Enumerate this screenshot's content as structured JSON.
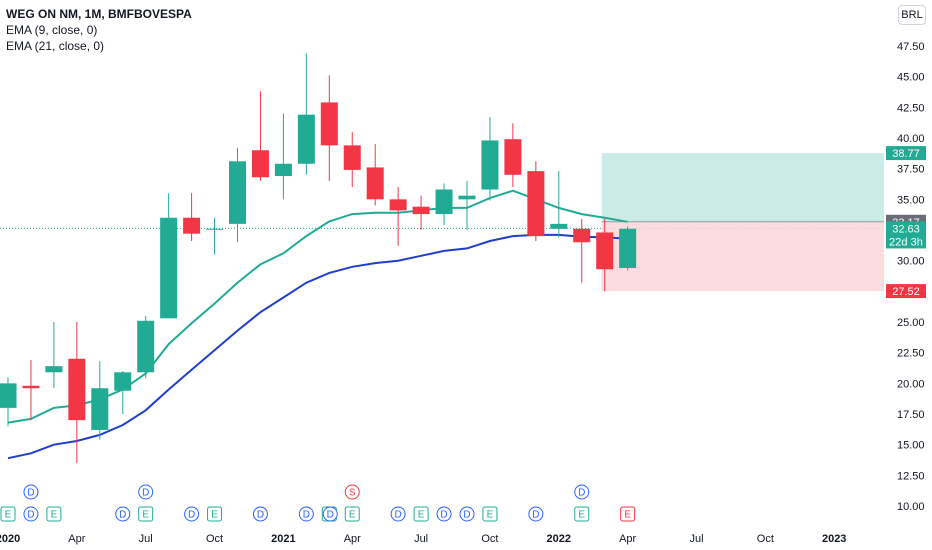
{
  "legend": {
    "title": "WEG ON NM, 1M, BMFBOVESPA",
    "ema1": "EMA (9, close, 0)",
    "ema2": "EMA (21, close, 0)"
  },
  "currency": "BRL",
  "chart_data": {
    "type": "candlestick",
    "interval": "1M",
    "ylim": [
      8.5,
      49
    ],
    "yticks": [
      10,
      12.5,
      15,
      17.5,
      20,
      22.5,
      25,
      27.5,
      30,
      32.5,
      35,
      37.5,
      40,
      42.5,
      45,
      47.5
    ],
    "ytick_labels": [
      "10.00",
      "12.50",
      "15.00",
      "17.50",
      "20.00",
      "22.50",
      "25.00",
      "27.50",
      "30.00",
      "32.50",
      "35.00",
      "37.50",
      "40.00",
      "42.50",
      "45.00",
      "47.50"
    ],
    "xticks": [
      {
        "label": "2020",
        "month": 0,
        "bold": true
      },
      {
        "label": "Apr",
        "month": 3,
        "bold": false
      },
      {
        "label": "Jul",
        "month": 6,
        "bold": false
      },
      {
        "label": "Oct",
        "month": 9,
        "bold": false
      },
      {
        "label": "2021",
        "month": 12,
        "bold": true
      },
      {
        "label": "Apr",
        "month": 15,
        "bold": false
      },
      {
        "label": "Jul",
        "month": 18,
        "bold": false
      },
      {
        "label": "Oct",
        "month": 21,
        "bold": false
      },
      {
        "label": "2022",
        "month": 24,
        "bold": true
      },
      {
        "label": "Apr",
        "month": 27,
        "bold": false
      },
      {
        "label": "Jul",
        "month": 30,
        "bold": false
      },
      {
        "label": "Oct",
        "month": 33,
        "bold": false
      },
      {
        "label": "2023",
        "month": 36,
        "bold": true
      }
    ],
    "candles": [
      {
        "date": "2019-12",
        "o": 18.0,
        "h": 20.5,
        "l": 16.5,
        "c": 20.0
      },
      {
        "date": "2020-01",
        "o": 19.8,
        "h": 21.9,
        "l": 17.0,
        "c": 19.6
      },
      {
        "date": "2020-02",
        "o": 20.9,
        "h": 25.0,
        "l": 19.6,
        "c": 21.4
      },
      {
        "date": "2020-03",
        "o": 22.0,
        "h": 25.0,
        "l": 13.5,
        "c": 17.0
      },
      {
        "date": "2020-04",
        "o": 16.2,
        "h": 21.8,
        "l": 15.4,
        "c": 19.6
      },
      {
        "date": "2020-05",
        "o": 19.4,
        "h": 21.0,
        "l": 17.5,
        "c": 20.9
      },
      {
        "date": "2020-06",
        "o": 20.9,
        "h": 25.5,
        "l": 20.4,
        "c": 25.1
      },
      {
        "date": "2020-07",
        "o": 25.3,
        "h": 35.5,
        "l": 25.3,
        "c": 33.5
      },
      {
        "date": "2020-08",
        "o": 33.5,
        "h": 35.5,
        "l": 31.6,
        "c": 32.2
      },
      {
        "date": "2020-09",
        "o": 32.6,
        "h": 33.5,
        "l": 30.5,
        "c": 32.6
      },
      {
        "date": "2020-10",
        "o": 33.0,
        "h": 39.2,
        "l": 31.5,
        "c": 38.1
      },
      {
        "date": "2020-11",
        "o": 39.0,
        "h": 43.8,
        "l": 36.5,
        "c": 36.8
      },
      {
        "date": "2020-12",
        "o": 36.9,
        "h": 42.0,
        "l": 35.0,
        "c": 37.9
      },
      {
        "date": "2021-01",
        "o": 37.9,
        "h": 46.9,
        "l": 37.0,
        "c": 41.9
      },
      {
        "date": "2021-02",
        "o": 42.9,
        "h": 45.1,
        "l": 36.5,
        "c": 39.4
      },
      {
        "date": "2021-03",
        "o": 39.4,
        "h": 40.5,
        "l": 36.0,
        "c": 37.4
      },
      {
        "date": "2021-04",
        "o": 37.6,
        "h": 39.5,
        "l": 34.5,
        "c": 35.0
      },
      {
        "date": "2021-05",
        "o": 35.0,
        "h": 36.0,
        "l": 31.2,
        "c": 34.1
      },
      {
        "date": "2021-06",
        "o": 34.4,
        "h": 35.3,
        "l": 32.5,
        "c": 33.8
      },
      {
        "date": "2021-07",
        "o": 33.8,
        "h": 36.3,
        "l": 32.9,
        "c": 35.8
      },
      {
        "date": "2021-08",
        "o": 35.0,
        "h": 36.5,
        "l": 32.5,
        "c": 35.3
      },
      {
        "date": "2021-09",
        "o": 35.8,
        "h": 41.7,
        "l": 34.9,
        "c": 39.8
      },
      {
        "date": "2021-10",
        "o": 39.9,
        "h": 41.2,
        "l": 36.0,
        "c": 37.0
      },
      {
        "date": "2021-11",
        "o": 37.3,
        "h": 38.1,
        "l": 31.6,
        "c": 32.0
      },
      {
        "date": "2021-12",
        "o": 32.6,
        "h": 37.3,
        "l": 31.9,
        "c": 33.0
      },
      {
        "date": "2022-01",
        "o": 32.6,
        "h": 33.4,
        "l": 28.2,
        "c": 31.5
      },
      {
        "date": "2022-02",
        "o": 32.3,
        "h": 33.4,
        "l": 27.5,
        "c": 29.3
      },
      {
        "date": "2022-03",
        "o": 29.4,
        "h": 32.8,
        "l": 29.2,
        "c": 32.6
      }
    ],
    "ema9": [
      16.8,
      17.1,
      18.0,
      18.2,
      18.7,
      19.5,
      20.8,
      23.2,
      24.9,
      26.5,
      28.2,
      29.7,
      30.6,
      32.0,
      33.2,
      33.8,
      33.9,
      33.9,
      34.1,
      34.3,
      34.3,
      35.1,
      35.7,
      35.0,
      34.3,
      33.8,
      33.5,
      33.17
    ],
    "ema21": [
      13.9,
      14.3,
      15.0,
      15.3,
      15.8,
      16.6,
      17.8,
      19.5,
      21.1,
      22.7,
      24.3,
      25.8,
      27.0,
      28.2,
      29.0,
      29.5,
      29.8,
      30.0,
      30.4,
      30.8,
      31.0,
      31.6,
      32.0,
      32.1,
      32.1,
      31.95,
      31.9,
      31.8
    ],
    "ema9_color": "#22ab94",
    "ema21_color": "#1e40c8",
    "up_color": "#22ab94",
    "down_color": "#f23645",
    "position": {
      "type": "long",
      "entry": 33.17,
      "target": 38.77,
      "stop": 27.52,
      "start_month": 26,
      "end_month": 38,
      "profit_color": "#b9e6dd",
      "loss_color": "#fbd3d7"
    },
    "price_labels": [
      {
        "text": "38.77",
        "value": 38.77,
        "color": "#22ab94"
      },
      {
        "text": "33.17",
        "value": 33.17,
        "color": "#6a6d78"
      },
      {
        "text": "27.52",
        "value": 27.52,
        "color": "#f23645"
      }
    ],
    "last_price": {
      "text": "32.63",
      "value": 32.63,
      "countdown": "22d 3h",
      "color": "#22ab94"
    },
    "event_markers": [
      {
        "type": "E",
        "month": 0,
        "row": 2
      },
      {
        "type": "D",
        "month": 1,
        "row": 2
      },
      {
        "type": "E",
        "month": 2,
        "row": 2
      },
      {
        "type": "D",
        "month": 1,
        "row": 1
      },
      {
        "type": "D",
        "month": 5,
        "row": 2
      },
      {
        "type": "E",
        "month": 6,
        "row": 2
      },
      {
        "type": "D",
        "month": 6,
        "row": 1
      },
      {
        "type": "D",
        "month": 8,
        "row": 2
      },
      {
        "type": "E",
        "month": 9,
        "row": 2
      },
      {
        "type": "D",
        "month": 11,
        "row": 2
      },
      {
        "type": "D",
        "month": 13,
        "row": 2
      },
      {
        "type": "E",
        "month": 14,
        "row": 2
      },
      {
        "type": "D",
        "month": 15,
        "row": 2
      },
      {
        "type": "E",
        "month": 15,
        "row": 2,
        "offset": 0
      },
      {
        "type": "S",
        "month": 15,
        "row": 1
      },
      {
        "type": "D",
        "month": 17,
        "row": 2
      },
      {
        "type": "E",
        "month": 18,
        "row": 2
      },
      {
        "type": "D",
        "month": 19,
        "row": 2
      },
      {
        "type": "D",
        "month": 20,
        "row": 2
      },
      {
        "type": "E",
        "month": 21,
        "row": 2
      },
      {
        "type": "D",
        "month": 23,
        "row": 2
      },
      {
        "type": "E",
        "month": 25,
        "row": 2
      },
      {
        "type": "D",
        "month": 25,
        "row": 1
      },
      {
        "type": "E",
        "month": 27,
        "row": 2
      }
    ]
  }
}
